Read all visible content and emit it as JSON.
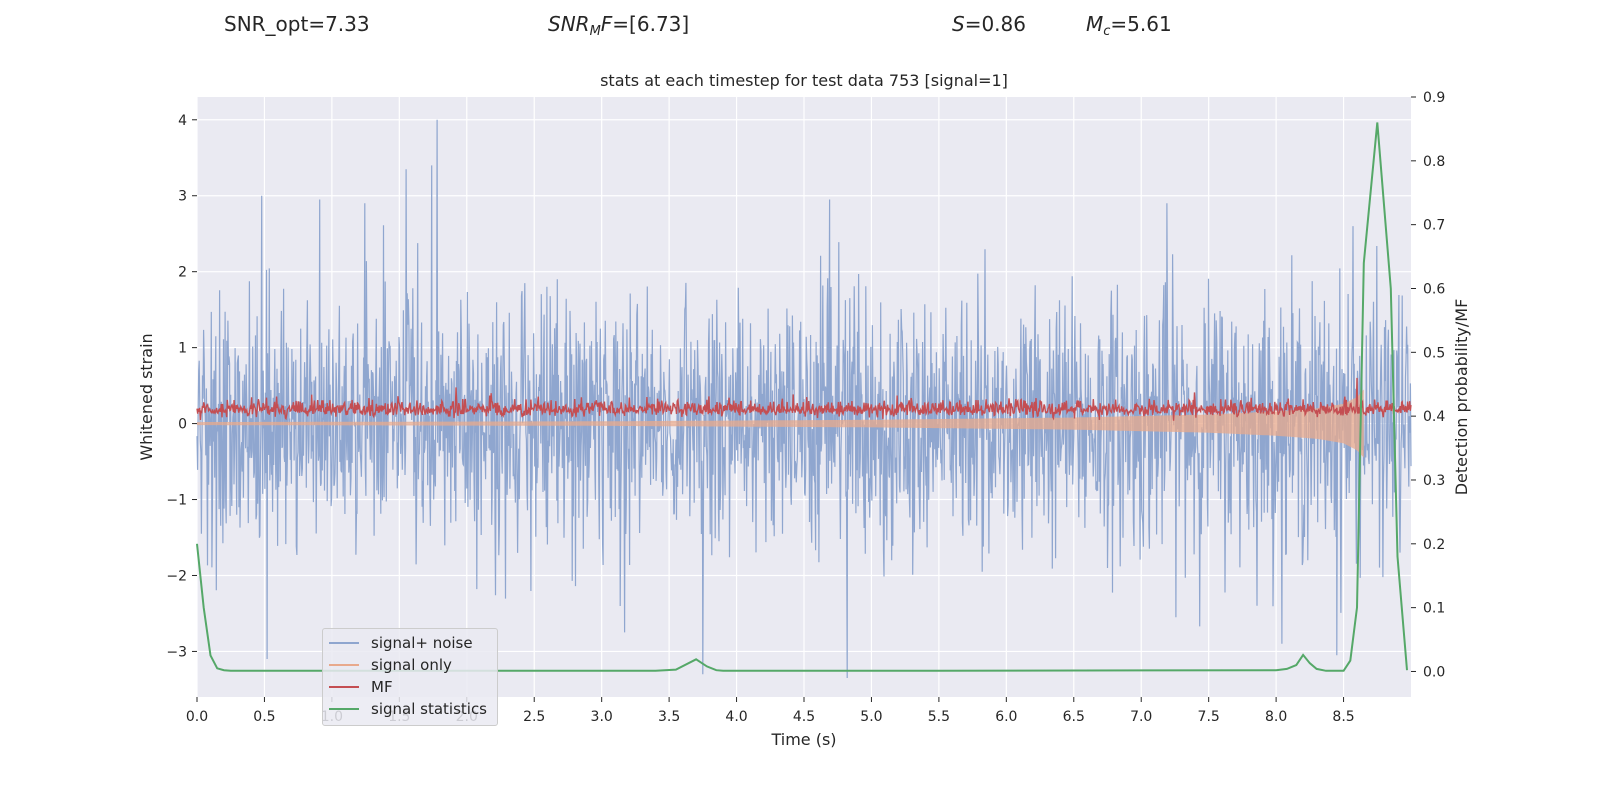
{
  "header": {
    "snr_opt": "SNR_opt=7.33",
    "snr_mf_base": "SNR",
    "snr_mf_sub": "M",
    "snr_mf_rest": "F",
    "snr_mf_value": "=[6.73]",
    "s_sym": "S",
    "s_value": "=0.86",
    "mc_sym": "M",
    "mc_sub": "c",
    "mc_value": "=5.61"
  },
  "chart_data": {
    "type": "line",
    "title": "stats at each timestep for test data 753 [signal=1]",
    "xlabel": "Time (s)",
    "ylabel": "Whitened strain",
    "y2label": "Detection probability/MF",
    "xlim": [
      0.0,
      9.0
    ],
    "ylim": [
      -3.6,
      4.3
    ],
    "y2lim": [
      -0.04,
      0.9
    ],
    "xticks": [
      0.0,
      0.5,
      1.0,
      1.5,
      2.0,
      2.5,
      3.0,
      3.5,
      4.0,
      4.5,
      5.0,
      5.5,
      6.0,
      6.5,
      7.0,
      7.5,
      8.0,
      8.5
    ],
    "xtick_labels": [
      "0.0",
      "0.5",
      "1.0",
      "1.5",
      "2.0",
      "2.5",
      "3.0",
      "3.5",
      "4.0",
      "4.5",
      "5.0",
      "5.5",
      "6.0",
      "6.5",
      "7.0",
      "7.5",
      "8.0",
      "8.5"
    ],
    "yticks": [
      -3,
      -2,
      -1,
      0,
      1,
      2,
      3,
      4
    ],
    "ytick_labels": [
      "−3",
      "−2",
      "−1",
      "0",
      "1",
      "2",
      "3",
      "4"
    ],
    "y2ticks": [
      0.0,
      0.1,
      0.2,
      0.3,
      0.4,
      0.5,
      0.6,
      0.7,
      0.8,
      0.9
    ],
    "y2tick_labels": [
      "0.0",
      "0.1",
      "0.2",
      "0.3",
      "0.4",
      "0.5",
      "0.6",
      "0.7",
      "0.8",
      "0.9"
    ],
    "grid": true,
    "legend_position": "lower-left",
    "series": [
      {
        "name": "signal+ noise",
        "axis": "left",
        "color": "#8fa6cf",
        "kind": "noise",
        "amplitude_std": 0.85,
        "peaks": [
          {
            "x": 0.48,
            "y": 3.0
          },
          {
            "x": 0.91,
            "y": 2.95
          },
          {
            "x": 1.55,
            "y": 3.35
          },
          {
            "x": 1.78,
            "y": 4.0
          },
          {
            "x": 1.74,
            "y": 3.4
          },
          {
            "x": 0.52,
            "y": -3.1
          },
          {
            "x": 3.75,
            "y": -3.3
          },
          {
            "x": 4.82,
            "y": -3.35
          },
          {
            "x": 8.45,
            "y": -3.05
          },
          {
            "x": 8.57,
            "y": 2.6
          },
          {
            "x": 3.17,
            "y": -2.75
          },
          {
            "x": 4.69,
            "y": 2.95
          },
          {
            "x": 7.19,
            "y": 2.9
          }
        ]
      },
      {
        "name": "signal only",
        "axis": "left",
        "color": "#e8a98c",
        "kind": "chirp",
        "envelope_x": [
          0.0,
          3.0,
          5.0,
          6.5,
          7.5,
          8.0,
          8.3,
          8.5,
          8.6,
          8.65
        ],
        "envelope_y": [
          0.02,
          0.03,
          0.05,
          0.08,
          0.12,
          0.16,
          0.2,
          0.26,
          0.35,
          0.45
        ]
      },
      {
        "name": "MF",
        "axis": "right",
        "color": "#c44e52",
        "kind": "noise",
        "baseline": 0.41,
        "amplitude_std": 0.008,
        "peaks": [
          {
            "x": 1.92,
            "y": 0.445
          },
          {
            "x": 2.18,
            "y": 0.436
          },
          {
            "x": 4.42,
            "y": 0.434
          },
          {
            "x": 8.6,
            "y": 0.46
          }
        ]
      },
      {
        "name": "signal statistics",
        "axis": "right",
        "color": "#55a868",
        "kind": "line",
        "x": [
          0.0,
          0.05,
          0.1,
          0.15,
          0.2,
          0.25,
          0.3,
          3.4,
          3.55,
          3.7,
          3.78,
          3.85,
          3.9,
          5.5,
          8.0,
          8.08,
          8.15,
          8.2,
          8.25,
          8.3,
          8.37,
          8.5,
          8.55,
          8.6,
          8.65,
          8.75,
          8.85,
          8.9,
          8.97
        ],
        "y": [
          0.2,
          0.1,
          0.025,
          0.005,
          0.002,
          0.001,
          0.001,
          0.001,
          0.003,
          0.019,
          0.008,
          0.002,
          0.001,
          0.001,
          0.002,
          0.004,
          0.01,
          0.026,
          0.013,
          0.004,
          0.001,
          0.001,
          0.017,
          0.1,
          0.64,
          0.86,
          0.6,
          0.18,
          0.002
        ]
      }
    ]
  }
}
